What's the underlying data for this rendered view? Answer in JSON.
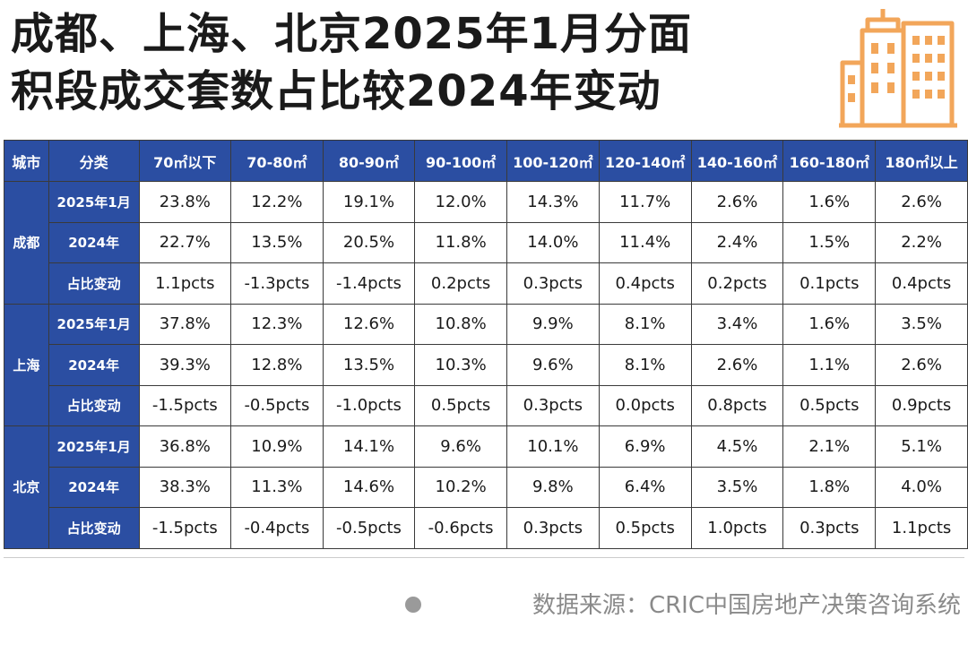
{
  "title": {
    "line1": "成都、上海、北京2025年1月分面",
    "line2": "积段成交套数占比较2024年变动"
  },
  "logo_icon": "city-buildings-icon",
  "colors": {
    "header_bg": "#2b4ea2",
    "positive": "#e12727",
    "negative": "#2a9a4a",
    "light_change": "#9bd089",
    "logo": "#f2a65a"
  },
  "chart_data": {
    "type": "table",
    "title": "成都、上海、北京2025年1月分面积段成交套数占比较2024年变动",
    "headers": [
      "城市",
      "分类",
      "70㎡以下",
      "70-80㎡",
      "80-90㎡",
      "90-100㎡",
      "100-120㎡",
      "120-140㎡",
      "140-160㎡",
      "160-180㎡",
      "180㎡以上"
    ],
    "cities": [
      {
        "name": "成都",
        "rows": [
          {
            "category": "2025年1月",
            "values": [
              "23.8%",
              "12.2%",
              "19.1%",
              "12.0%",
              "14.3%",
              "11.7%",
              "2.6%",
              "1.6%",
              "2.6%"
            ]
          },
          {
            "category": "2024年",
            "values": [
              "22.7%",
              "13.5%",
              "20.5%",
              "11.8%",
              "14.0%",
              "11.4%",
              "2.4%",
              "1.5%",
              "2.2%"
            ]
          },
          {
            "category": "占比变动",
            "values": [
              "1.1pcts",
              "-1.3pcts",
              "-1.4pcts",
              "0.2pcts",
              "0.3pcts",
              "0.4pcts",
              "0.2pcts",
              "0.1pcts",
              "0.4pcts"
            ],
            "tones": [
              "pos",
              "neg",
              "neg",
              "lite",
              "lite",
              "lite",
              "lite",
              "zero",
              "lite"
            ]
          }
        ]
      },
      {
        "name": "上海",
        "rows": [
          {
            "category": "2025年1月",
            "values": [
              "37.8%",
              "12.3%",
              "12.6%",
              "10.8%",
              "9.9%",
              "8.1%",
              "3.4%",
              "1.6%",
              "3.5%"
            ]
          },
          {
            "category": "2024年",
            "values": [
              "39.3%",
              "12.8%",
              "13.5%",
              "10.3%",
              "9.6%",
              "8.1%",
              "2.6%",
              "1.1%",
              "2.6%"
            ]
          },
          {
            "category": "占比变动",
            "values": [
              "-1.5pcts",
              "-0.5pcts",
              "-1.0pcts",
              "0.5pcts",
              "0.3pcts",
              "0.0pcts",
              "0.8pcts",
              "0.5pcts",
              "0.9pcts"
            ],
            "tones": [
              "neg",
              "lite",
              "neg",
              "lite",
              "lite",
              "zero",
              "pos",
              "lite",
              "pos"
            ]
          }
        ]
      },
      {
        "name": "北京",
        "rows": [
          {
            "category": "2025年1月",
            "values": [
              "36.8%",
              "10.9%",
              "14.1%",
              "9.6%",
              "10.1%",
              "6.9%",
              "4.5%",
              "2.1%",
              "5.1%"
            ]
          },
          {
            "category": "2024年",
            "values": [
              "38.3%",
              "11.3%",
              "14.6%",
              "10.2%",
              "9.8%",
              "6.4%",
              "3.5%",
              "1.8%",
              "4.0%"
            ]
          },
          {
            "category": "占比变动",
            "values": [
              "-1.5pcts",
              "-0.4pcts",
              "-0.5pcts",
              "-0.6pcts",
              "0.3pcts",
              "0.5pcts",
              "1.0pcts",
              "0.3pcts",
              "1.1pcts"
            ],
            "tones": [
              "neg",
              "lite",
              "lite",
              "neg",
              "lite",
              "lite",
              "pos",
              "lite",
              "pos"
            ]
          }
        ]
      }
    ]
  },
  "source": "数据来源：CRIC中国房地产决策咨询系统"
}
